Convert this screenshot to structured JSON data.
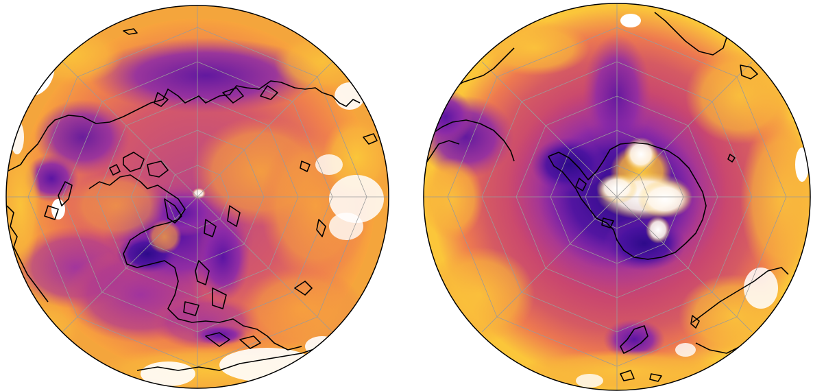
{
  "figure": {
    "panels": [
      {
        "name": "north-polar-map",
        "hemisphere": "north",
        "projection": "orthographic-polar",
        "colormap": [
          "#ffffff",
          "#2d0a8a",
          "#5b14a3",
          "#8c2aa8",
          "#b13b8e",
          "#d1506f",
          "#ee7a4f",
          "#f8a43c",
          "#fbc63a"
        ],
        "background_color": "#f4a53c"
      },
      {
        "name": "south-polar-map",
        "hemisphere": "south",
        "projection": "orthographic-polar",
        "colormap": [
          "#ffffff",
          "#2d0a8a",
          "#5b14a3",
          "#8c2aa8",
          "#b13b8e",
          "#d1506f",
          "#ee7a4f",
          "#f8a43c",
          "#fbc63a"
        ],
        "background_color": "#f8b63c"
      }
    ],
    "colors": {
      "coastline": "#000000",
      "gridline": "#9a9a9a",
      "disk_outline": "#000000",
      "missing": "#ffffff"
    }
  }
}
